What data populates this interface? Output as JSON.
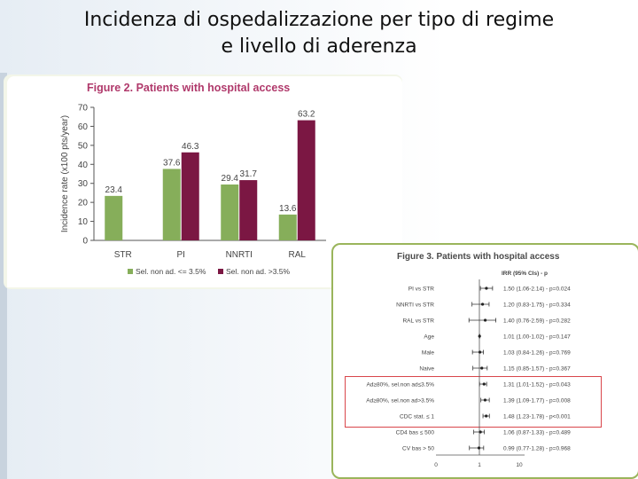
{
  "slide": {
    "title_line1": "Incidenza di ospedalizzazione per tipo di regime",
    "title_line2": "e livello di aderenza"
  },
  "colors": {
    "series1": "#86ae5a",
    "series2": "#7b1743",
    "title_pink": "#b0396b",
    "frame_green": "#9ab55b",
    "highlight_red": "#d9464b"
  },
  "chart_data": [
    {
      "type": "bar",
      "title": "Figure 2. Patients with hospital access",
      "ylabel": "Incidence rate (x100 pts/year)",
      "ylim": [
        0,
        70
      ],
      "yticks": [
        0,
        10,
        20,
        30,
        40,
        50,
        60,
        70
      ],
      "categories": [
        "STR",
        "PI",
        "NNRTI",
        "RAL"
      ],
      "series": [
        {
          "name": "Sel. non ad. <= 3.5%",
          "values": [
            23.4,
            37.6,
            29.4,
            13.6
          ],
          "labels": [
            "23.4",
            "37.6",
            "29.4",
            "13.6"
          ]
        },
        {
          "name": "Sel. non ad. >3.5%",
          "values": [
            null,
            46.3,
            31.7,
            63.2
          ],
          "labels": [
            "",
            "46.3",
            "31.7",
            "63.2"
          ]
        }
      ],
      "legend": "bottom"
    },
    {
      "type": "scatter",
      "title": "Figure 3. Patients with hospital access",
      "header": "IRR (95% CIs) - p",
      "xticks": [
        "0",
        "1",
        "10"
      ],
      "rows": [
        {
          "label": "PI vs STR",
          "irr": 1.5,
          "lo": 1.06,
          "hi": 2.14,
          "text": "1.50 (1.06-2.14) - p=0.024"
        },
        {
          "label": "NNRTI vs STR",
          "irr": 1.2,
          "lo": 0.83,
          "hi": 1.75,
          "text": "1.20 (0.83-1.75) - p=0.334"
        },
        {
          "label": "RAL vs STR",
          "irr": 1.4,
          "lo": 0.76,
          "hi": 2.59,
          "text": "1.40 (0.76-2.59) - p=0.282"
        },
        {
          "label": "Age",
          "irr": 1.01,
          "lo": 1.0,
          "hi": 1.02,
          "text": "1.01 (1.00-1.02) - p=0.147"
        },
        {
          "label": "Male",
          "irr": 1.03,
          "lo": 0.84,
          "hi": 1.26,
          "text": "1.03 (0.84-1.26) - p=0.769"
        },
        {
          "label": "Naive",
          "irr": 1.15,
          "lo": 0.85,
          "hi": 1.57,
          "text": "1.15 (0.85-1.57) - p=0.367"
        },
        {
          "label": "Ad≥80%, sel.non ad≤3.5%",
          "irr": 1.31,
          "lo": 1.01,
          "hi": 1.52,
          "text": "1.31 (1.01-1.52) - p=0.043"
        },
        {
          "label": "Ad≥80%, sel.non ad>3.5%",
          "irr": 1.39,
          "lo": 1.09,
          "hi": 1.77,
          "text": "1.39 (1.09-1.77) - p=0.008"
        },
        {
          "label": "CDC stat. ≤ 1",
          "irr": 1.48,
          "lo": 1.23,
          "hi": 1.78,
          "text": "1.48 (1.23-1.78) - p<0.001"
        },
        {
          "label": "CD4 bas ≤ 500",
          "irr": 1.06,
          "lo": 0.87,
          "hi": 1.33,
          "text": "1.06 (0.87-1.33) - p=0.489"
        },
        {
          "label": "CV bas > 50",
          "irr": 0.99,
          "lo": 0.77,
          "hi": 1.28,
          "text": "0.99 (0.77-1.28) - p=0.968"
        }
      ],
      "highlighted_rows": [
        6,
        7,
        8
      ]
    }
  ]
}
